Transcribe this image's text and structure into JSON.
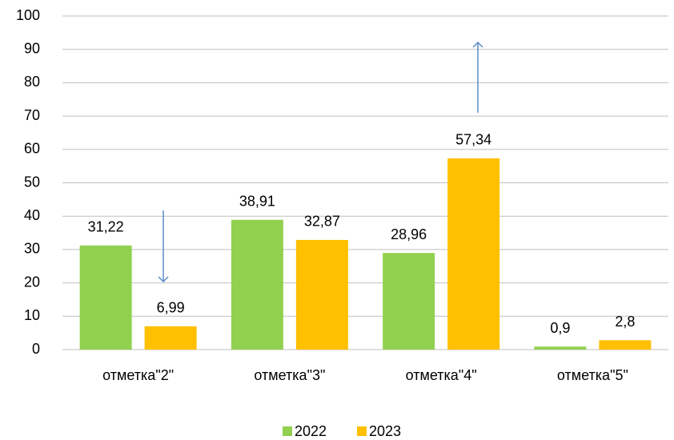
{
  "chart_data": {
    "type": "bar",
    "categories": [
      "отметка\"2\"",
      "отметка\"3\"",
      "отметка\"4\"",
      "отметка\"5\""
    ],
    "series": [
      {
        "name": "2022",
        "color": "#92d050",
        "values": [
          31.22,
          38.91,
          28.96,
          0.9
        ],
        "value_labels": [
          "31,22",
          "38,91",
          "28,96",
          "0,9"
        ]
      },
      {
        "name": "2023",
        "color": "#ffc000",
        "values": [
          6.99,
          32.87,
          57.34,
          2.8
        ],
        "value_labels": [
          "6,99",
          "32,87",
          "57,34",
          "2,8"
        ]
      }
    ],
    "ylim": [
      0,
      100
    ],
    "yticks": [
      0,
      10,
      20,
      30,
      40,
      50,
      60,
      70,
      80,
      90,
      100
    ],
    "grid": true,
    "legend": "bottom"
  }
}
